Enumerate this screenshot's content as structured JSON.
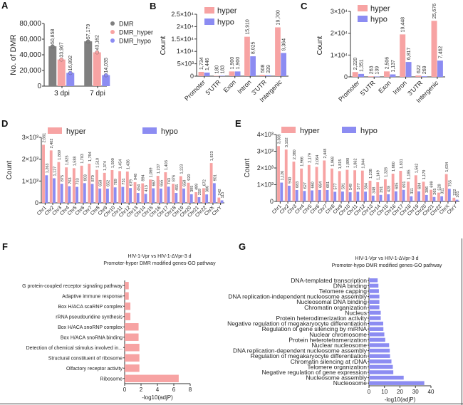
{
  "colors": {
    "dmr": "#7f7f7f",
    "hyper": "#f7a3a3",
    "hypo": "#8c8cf2"
  },
  "chart_data": [
    {
      "panel": "A",
      "type": "bar",
      "ylabel": "No. of DMR",
      "xlabel": "",
      "ylim": [
        0,
        80000
      ],
      "yticks": [
        0,
        20000,
        40000,
        60000,
        80000
      ],
      "ytick_labels": [
        "0",
        "20,000",
        "40,000",
        "60,000",
        "80,000"
      ],
      "categories": [
        "3 dpi",
        "7 dpi"
      ],
      "legend_placement": "right",
      "series": [
        {
          "name": "DMR",
          "color_key": "dmr",
          "values": [
            50858,
            57179
          ],
          "labels": [
            "50,858",
            "57,179"
          ]
        },
        {
          "name": "DMR_hyper",
          "color_key": "hyper",
          "values": [
            33967,
            43162
          ],
          "labels": [
            "33,967",
            "43,162"
          ]
        },
        {
          "name": "DMR_hypo",
          "color_key": "hypo",
          "values": [
            16892,
            14035
          ],
          "labels": [
            "16,892",
            "14,035"
          ]
        }
      ]
    },
    {
      "panel": "B",
      "type": "bar",
      "ylabel": "Count",
      "xlabel": "",
      "ylim": [
        0,
        25000
      ],
      "yticks": [
        0,
        5000,
        10000,
        15000,
        20000,
        25000
      ],
      "ytick_labels": [
        "0",
        "5×10³",
        "1×10⁴",
        "1.5×10⁴",
        "2×10⁴",
        "2.5×10⁴"
      ],
      "categories": [
        "Promoter",
        "5'UTR",
        "Exon",
        "Intron",
        "3'UTR",
        "Intergenic"
      ],
      "legend_placement": "top-left",
      "series": [
        {
          "name": "hyper",
          "color_key": "hyper",
          "values": [
            1734,
            180,
            1900,
            15910,
            508,
            19700
          ],
          "labels": [
            "1,734",
            "180",
            "1,900",
            "15,910",
            "508",
            "19,700"
          ]
        },
        {
          "name": "hypo",
          "color_key": "hypo",
          "values": [
            1446,
            183,
            1900,
            8025,
            339,
            9364
          ],
          "labels": [
            "1,446",
            "183",
            "1,900",
            "8,025",
            "339",
            "9,364"
          ]
        }
      ]
    },
    {
      "panel": "C",
      "type": "bar",
      "ylabel": "Count",
      "xlabel": "",
      "ylim": [
        0,
        30000
      ],
      "yticks": [
        0,
        10000,
        20000,
        30000
      ],
      "ytick_labels": [
        "0",
        "1×10⁴",
        "2×10⁴",
        "3×10⁴"
      ],
      "categories": [
        "Promoter",
        "5'UTR",
        "Exon",
        "Intron",
        "3'UTR",
        "Intergenic"
      ],
      "legend_placement": "top-left",
      "series": [
        {
          "name": "hyper",
          "color_key": "hyper",
          "values": [
            2220,
            263,
            2506,
            19448,
            622,
            25676
          ],
          "labels": [
            "2,220",
            "263",
            "2,506",
            "19,448",
            "622",
            "25,676"
          ]
        },
        {
          "name": "hypo",
          "color_key": "hypo",
          "values": [
            1351,
            139,
            1137,
            6817,
            269,
            7462
          ],
          "labels": [
            "1,351",
            "139",
            "1,137",
            "6,817",
            "269",
            "7,462"
          ]
        }
      ]
    },
    {
      "panel": "D",
      "type": "bar",
      "ylabel": "Count",
      "xlabel": "",
      "ylim": [
        0,
        3000
      ],
      "yticks": [
        0,
        1000,
        2000,
        3000
      ],
      "ytick_labels": [
        "0",
        "1×10³",
        "2×10³",
        "3×10³"
      ],
      "categories": [
        "Chr1",
        "Chr2",
        "Chr3",
        "Chr4",
        "Chr5",
        "Chr6",
        "Chr7",
        "Chr8",
        "Chr9",
        "Chr10",
        "Chr11",
        "Chr12",
        "Chr13",
        "Chr14",
        "Chr15",
        "Chr16",
        "Chr17",
        "Chr18",
        "Chr19",
        "Chr20",
        "Chr21",
        "Chr22",
        "ChrX",
        "ChrY"
      ],
      "legend_placement": "top",
      "series": [
        {
          "name": "hyper",
          "color_key": "hyper",
          "values": [
            2661,
            2402,
            1869,
            1625,
            1588,
            1703,
            1794,
            1510,
            1374,
            1500,
            1454,
            1436,
            948,
            894,
            1069,
            1237,
            1403,
            876,
            1223,
            920,
            489,
            672,
            1823,
            242
          ],
          "labels": [
            "2,661",
            "2,402",
            "1,869",
            "1,625",
            "1,588",
            "1,703",
            "1,794",
            "1,510",
            "1,374",
            "1,500",
            "1,454",
            "1,436",
            "948",
            "894",
            "1,069",
            "1,237",
            "1,403",
            "876",
            "1,223",
            "920",
            "489",
            "672",
            "1,823",
            "242"
          ]
        },
        {
          "name": "hypo",
          "color_key": "hypo",
          "values": [
            1263,
            1127,
            875,
            763,
            733,
            903,
            870,
            658,
            652,
            709,
            731,
            679,
            454,
            413,
            667,
            655,
            743,
            455,
            658,
            395,
            259,
            386,
            901,
            115
          ],
          "labels": [
            "1,263",
            "1,127",
            "875",
            "763",
            "733",
            "903",
            "870",
            "658",
            "652",
            "709",
            "731",
            "679",
            "454",
            "413",
            "667",
            "655",
            "743",
            "455",
            "658",
            "395",
            "259",
            "386",
            "901",
            "115"
          ]
        }
      ]
    },
    {
      "panel": "E",
      "type": "bar",
      "ylabel": "Count",
      "xlabel": "",
      "ylim": [
        0,
        4000
      ],
      "yticks": [
        0,
        1000,
        2000,
        3000,
        4000
      ],
      "ytick_labels": [
        "0",
        "1×10³",
        "2×10³",
        "3×10³",
        "4×10³"
      ],
      "categories": [
        "Chr1",
        "Chr2",
        "Chr3",
        "Chr4",
        "Chr5",
        "Chr6",
        "Chr7",
        "Chr8",
        "Chr9",
        "Chr10",
        "Chr11",
        "Chr12",
        "Chr13",
        "Chr14",
        "Chr15",
        "Chr16",
        "Chr17",
        "Chr18",
        "Chr19",
        "Chr20",
        "Chr21",
        "Chr22",
        "ChrX",
        "ChrY"
      ],
      "legend_placement": "top",
      "series": [
        {
          "name": "hyper",
          "color_key": "hyper",
          "values": [
            3308,
            3102,
            2380,
            1966,
            2179,
            2064,
            2448,
            1968,
            1815,
            1890,
            1862,
            1844,
            1238,
            1149,
            1328,
            1660,
            1831,
            1185,
            1562,
            1179,
            699,
            528,
            1634,
            222
          ],
          "labels": [
            "3,308",
            "3,102",
            "2,380",
            "1,966",
            "2,179",
            "2,064",
            "2,448",
            "1,968",
            "1,815",
            "1,890",
            "1,862",
            "1,844",
            "1,238",
            "1,149",
            "1,328",
            "1,660",
            "1,831",
            "1,185",
            "1,562",
            "1,179",
            "699",
            "528",
            "1,634",
            "222"
          ]
        },
        {
          "name": "hypo",
          "color_key": "hypo",
          "values": [
            1126,
            940,
            683,
            627,
            660,
            684,
            681,
            577,
            591,
            549,
            577,
            584,
            348,
            391,
            428,
            605,
            691,
            311,
            604,
            386,
            265,
            311,
            755,
            101
          ],
          "labels": [
            "1,126",
            "940",
            "683",
            "627",
            "660",
            "684",
            "681",
            "577",
            "591",
            "549",
            "577",
            "584",
            "348",
            "391",
            "428",
            "605",
            "691",
            "311",
            "604",
            "386",
            "265",
            "311",
            "755",
            "101"
          ]
        }
      ]
    },
    {
      "panel": "F",
      "type": "hbar",
      "title": [
        "HIV-1-Vpr vs HIV-1-ΔVpr-3 d",
        "Promoter-hyper DMR modified genes-GO pathway"
      ],
      "xlabel": "-log10(adjP)",
      "xlim": [
        0,
        8
      ],
      "xticks": [
        0,
        2,
        4,
        6,
        8
      ],
      "color_key": "hyper",
      "categories": [
        "G protein-coupled receptor signaling pathway",
        "Adaptive immune response",
        "Box H/ACA scaRNP complex",
        "rRNA pseudouridine synthesis",
        "Box H/ACA snoRNP complex",
        "Box H/ACA snoRNA binding",
        "Detection of chemical stimulus involved in...",
        "Structural constituent of ribosome",
        "Olfactory receptor activity",
        "Ribosome"
      ],
      "values": [
        0.5,
        0.5,
        0.7,
        0.7,
        1.7,
        1.7,
        1.8,
        1.8,
        1.8,
        6.6
      ]
    },
    {
      "panel": "G",
      "type": "hbar",
      "title": [
        "HIV-1-Vpr vs HIV-1-ΔVpr-3 d",
        "Promoter-hypo DMR modified genes-GO pathway"
      ],
      "xlabel": "-log10(adjP)",
      "xlim": [
        0,
        40
      ],
      "xticks": [
        0,
        10,
        20,
        30,
        40
      ],
      "color_key": "hypo",
      "categories": [
        "DNA-templated transcription",
        "DNA binding",
        "Telomere capping",
        "DNA replication-independent nucleosome assembly",
        "Nucleosomal DNA binding",
        "Chromatin organization",
        "Nucleus",
        "Protein heterodimerization activity",
        "Negative regulation of megakaryocyte differentiation",
        "Regulation of gene silencing by miRNA",
        "Nuclear chromosome",
        "Protein heterotetramerization",
        "Nuclear nucleosome",
        "DNA replication-dependent nucleosome assembly",
        "Regulation of megakaryocyte differentiation",
        "Chromatin silencing at rDNA",
        "Telomere organization",
        "Negative regulation of gene expression",
        "Nucleosome assembly",
        "Nucleosome"
      ],
      "values": [
        5.6,
        6.1,
        6.4,
        6.7,
        6.7,
        6.7,
        7.6,
        7.6,
        9.2,
        9.3,
        9.9,
        10.5,
        13.0,
        13.4,
        13.6,
        14.5,
        15.4,
        15.7,
        22.4,
        35.7
      ]
    }
  ]
}
